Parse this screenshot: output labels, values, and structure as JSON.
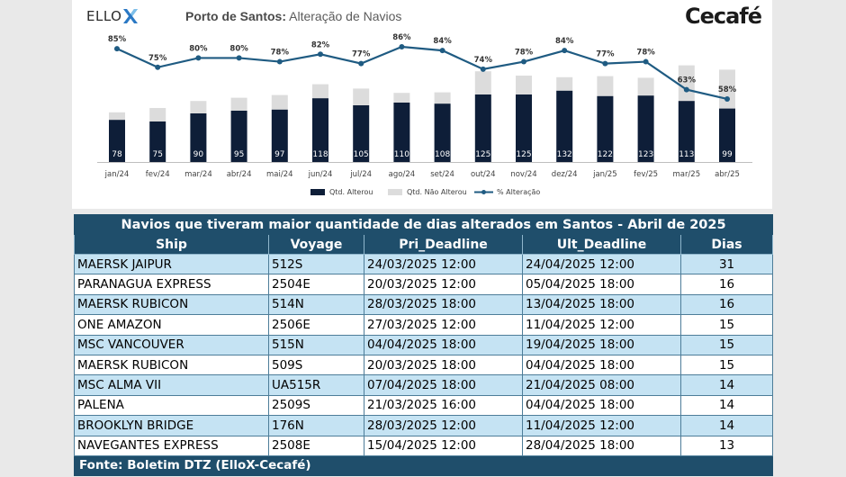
{
  "header": {
    "logo_left": "ELLO",
    "title_bold": "Porto de Santos:",
    "title_rest": " Alteração de Navios",
    "logo_right": "Cecafé",
    "colors": {
      "bar_altered": "#0e1e38",
      "bar_not_altered": "#dcdcdc",
      "line": "#1f5b82"
    }
  },
  "chart_data": {
    "type": "bar",
    "categories": [
      "jan/24",
      "fev/24",
      "mar/24",
      "abr/24",
      "mai/24",
      "jun/24",
      "jul/24",
      "ago/24",
      "set/24",
      "out/24",
      "nov/24",
      "dez/24",
      "jan/25",
      "fev/25",
      "mar/25",
      "abr/25"
    ],
    "series": [
      {
        "name": "Qtd. Alterou",
        "kind": "stacked-bar",
        "values": [
          78,
          75,
          90,
          95,
          97,
          118,
          105,
          110,
          108,
          125,
          125,
          132,
          122,
          123,
          113,
          99
        ]
      },
      {
        "name": "Qtd. Não Alterou",
        "kind": "stacked-bar",
        "values": [
          14,
          25,
          23,
          24,
          27,
          26,
          31,
          18,
          21,
          43,
          35,
          25,
          37,
          33,
          66,
          72
        ]
      },
      {
        "name": "% Alteração",
        "kind": "line",
        "values": [
          85,
          75,
          80,
          80,
          78,
          82,
          77,
          86,
          84,
          74,
          78,
          84,
          77,
          78,
          63,
          58
        ],
        "labels": [
          "85%",
          "75%",
          "80%",
          "80%",
          "78%",
          "82%",
          "77%",
          "86%",
          "84%",
          "74%",
          "78%",
          "84%",
          "77%",
          "78%",
          "63%",
          "58%"
        ]
      }
    ],
    "legend_position": "bottom-center",
    "grid": false
  },
  "table": {
    "title": "Navios que tiveram maior quantidade de dias alterados em Santos - Abril de 2025",
    "columns": [
      "Ship",
      "Voyage",
      "Pri_Deadline",
      "Ult_Deadline",
      "Dias"
    ],
    "rows": [
      [
        "MAERSK JAIPUR",
        "512S",
        "24/03/2025 12:00",
        "24/04/2025 12:00",
        "31"
      ],
      [
        "PARANAGUA EXPRESS",
        "2504E",
        "20/03/2025 12:00",
        "05/04/2025 18:00",
        "16"
      ],
      [
        "MAERSK RUBICON",
        "514N",
        "28/03/2025 18:00",
        "13/04/2025 18:00",
        "16"
      ],
      [
        "ONE AMAZON",
        "2506E",
        "27/03/2025 12:00",
        "11/04/2025 12:00",
        "15"
      ],
      [
        "MSC VANCOUVER",
        "515N",
        "04/04/2025 18:00",
        "19/04/2025 18:00",
        "15"
      ],
      [
        "MAERSK RUBICON",
        "509S",
        "20/03/2025 18:00",
        "04/04/2025 18:00",
        "15"
      ],
      [
        "MSC ALMA VII",
        "UA515R",
        "07/04/2025 18:00",
        "21/04/2025 08:00",
        "14"
      ],
      [
        "PALENA",
        "2509S",
        "21/03/2025 16:00",
        "04/04/2025 18:00",
        "14"
      ],
      [
        "BROOKLYN BRIDGE",
        "176N",
        "28/03/2025 12:00",
        "11/04/2025 12:00",
        "14"
      ],
      [
        "NAVEGANTES EXPRESS",
        "2508E",
        "15/04/2025 12:00",
        "28/04/2025 18:00",
        "13"
      ]
    ],
    "source": "Fonte: Boletim DTZ (ElloX-Cecafé)"
  }
}
